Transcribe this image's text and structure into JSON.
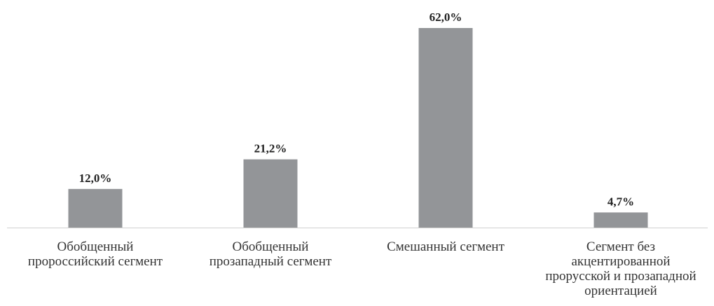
{
  "chart_data": {
    "type": "bar",
    "categories": [
      "Обобщенный\nпророссийский сегмент",
      "Обобщенный\nпрозападный сегмент",
      "Смешанный сегмент",
      "Сегмент без\nакцентированной\nпрорусской и прозападной\nориентацией"
    ],
    "values": [
      12.0,
      21.2,
      62.0,
      4.7
    ],
    "value_labels": [
      "12,0%",
      "21,2%",
      "62,0%",
      "4,7%"
    ],
    "color": "#939598"
  }
}
